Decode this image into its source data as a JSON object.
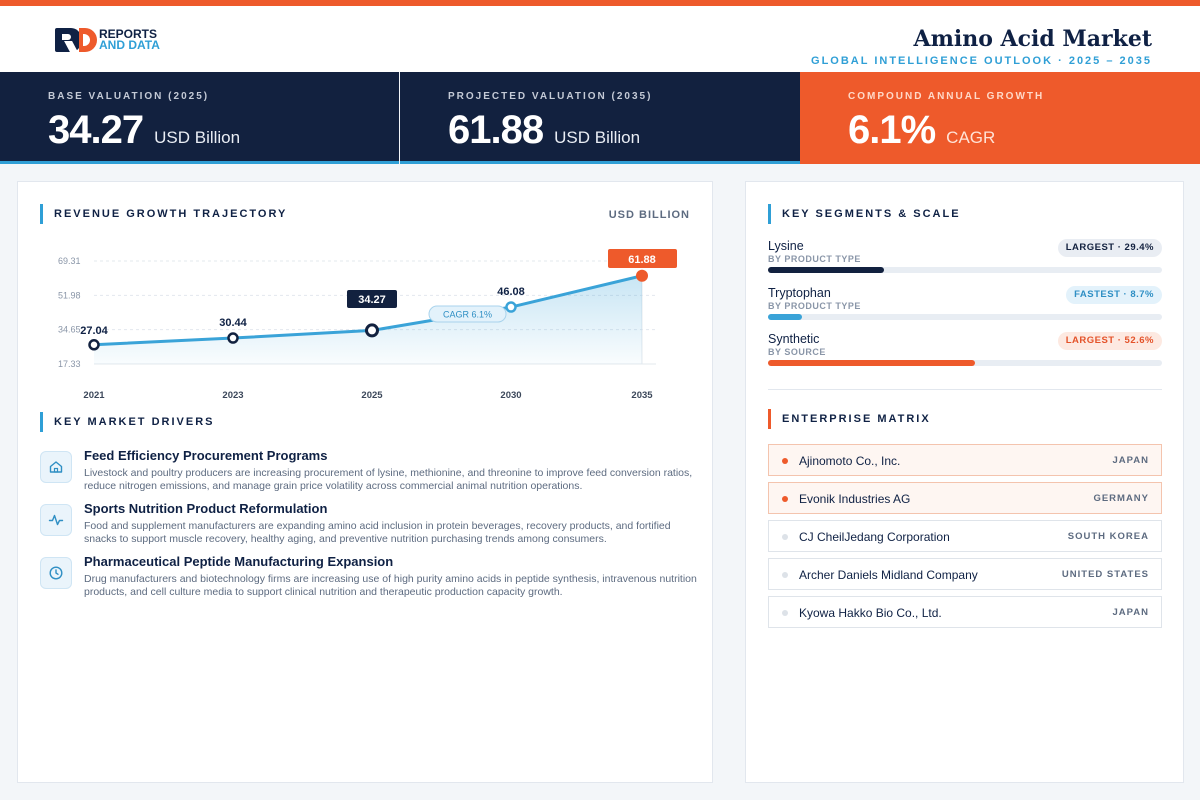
{
  "header": {
    "logo_line1": "REPORTS",
    "logo_line2": "AND DATA",
    "title": "Amino Acid Market",
    "subtitle": "GLOBAL INTELLIGENCE OUTLOOK  ·  2025 – 2035"
  },
  "kpis": [
    {
      "label": "BASE VALUATION (2025)",
      "value": "34.27",
      "unit": "USD Billion"
    },
    {
      "label": "PROJECTED VALUATION (2035)",
      "value": "61.88",
      "unit": "USD Billion"
    },
    {
      "label": "COMPOUND ANNUAL GROWTH",
      "value": "6.1%",
      "unit": "CAGR"
    }
  ],
  "trajectory": {
    "title": "REVENUE GROWTH TRAJECTORY",
    "unit_label": "USD BILLION"
  },
  "chart_data": {
    "type": "area",
    "x": [
      "2021",
      "2023",
      "2025",
      "2030",
      "2035"
    ],
    "values": [
      27.04,
      30.44,
      34.27,
      46.08,
      61.88
    ],
    "labels": [
      "27.04",
      "30.44",
      "34.27",
      "46.08",
      "61.88"
    ],
    "yticks": [
      "69.31",
      "51.98",
      "34.65",
      "17.33"
    ],
    "ytick_values": [
      69.31,
      51.98,
      34.65,
      17.33
    ],
    "ylim": [
      17.33,
      69.31
    ],
    "annotation": "CAGR 6.1%",
    "grid": true,
    "colors": {
      "line": "#3aa3d8",
      "highlight": "#12213f",
      "end": "#ee5a2b"
    }
  },
  "drivers": {
    "title": "KEY MARKET DRIVERS",
    "items": [
      {
        "icon": "home-icon",
        "title": "Feed Efficiency Procurement Programs",
        "desc": "Livestock and poultry producers are increasing procurement of lysine, methionine, and threonine to improve feed conversion ratios, reduce nitrogen emissions, and manage grain price volatility across commercial animal nutrition operations."
      },
      {
        "icon": "activity-icon",
        "title": "Sports Nutrition Product Reformulation",
        "desc": "Food and supplement manufacturers are expanding amino acid inclusion in protein beverages, recovery products, and fortified snacks to support muscle recovery, healthy aging, and preventive nutrition purchasing trends among consumers."
      },
      {
        "icon": "clock-icon",
        "title": "Pharmaceutical Peptide Manufacturing Expansion",
        "desc": "Drug manufacturers and biotechnology firms are increasing use of high purity amino acids in peptide synthesis, intravenous nutrition products, and cell culture media to support clinical nutrition and therapeutic production capacity growth."
      }
    ]
  },
  "segments": {
    "title": "KEY SEGMENTS & SCALE",
    "items": [
      {
        "name": "Lysine",
        "sub": "BY PRODUCT TYPE",
        "badge": "LARGEST · 29.4%",
        "share": 0.294,
        "color": "#12213f",
        "badge_bg": "#e9edf3",
        "badge_fg": "#12213f"
      },
      {
        "name": "Tryptophan",
        "sub": "BY PRODUCT TYPE",
        "badge": "FASTEST · 8.7%",
        "share": 0.087,
        "color": "#3aa3d8",
        "badge_bg": "#e3f2fb",
        "badge_fg": "#2f8fc4"
      },
      {
        "name": "Synthetic",
        "sub": "BY SOURCE",
        "badge": "LARGEST · 52.6%",
        "share": 0.526,
        "color": "#ee5a2b",
        "badge_bg": "#fde9e1",
        "badge_fg": "#e4532a"
      }
    ]
  },
  "enterprise": {
    "title": "ENTERPRISE MATRIX",
    "items": [
      {
        "name": "Ajinomoto Co., Inc.",
        "country": "JAPAN",
        "highlight": true
      },
      {
        "name": "Evonik Industries AG",
        "country": "GERMANY",
        "highlight": true
      },
      {
        "name": "CJ CheilJedang Corporation",
        "country": "SOUTH KOREA",
        "highlight": false
      },
      {
        "name": "Archer Daniels Midland Company",
        "country": "UNITED STATES",
        "highlight": false
      },
      {
        "name": "Kyowa Hakko Bio Co., Ltd.",
        "country": "JAPAN",
        "highlight": false
      }
    ]
  }
}
